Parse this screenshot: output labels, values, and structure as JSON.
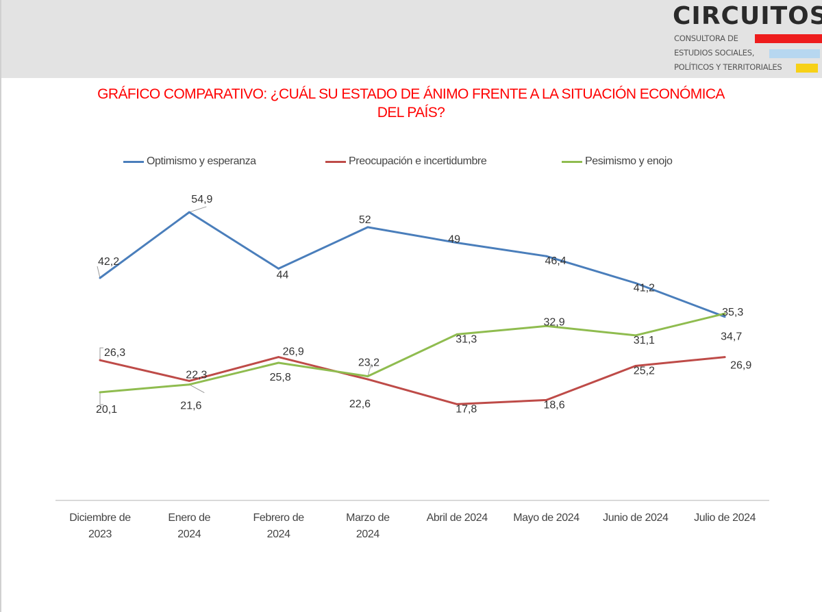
{
  "logo": {
    "name": "CIRCUITOS",
    "lines": [
      "CONSULTORA DE",
      "ESTUDIOS SOCIALES,",
      "POLÍTICOS Y TERRITORIALES"
    ],
    "swatch_colors": [
      "#ee1c1c",
      "#b7d7f0",
      "#f7d117"
    ]
  },
  "title_line1": "GRÁFICO COMPARATIVO: ¿CUÁL SU ESTADO DE ÁNIMO FRENTE A LA SITUACIÓN ECONÓMICA",
  "title_line2": "DEL PAÍS?",
  "chart_data": {
    "type": "line",
    "title": "GRÁFICO COMPARATIVO: ¿CUÁL SU ESTADO DE ÁNIMO FRENTE A LA SITUACIÓN ECONÓMICA DEL PAÍS?",
    "xlabel": "",
    "ylabel": "",
    "ylim": [
      0,
      60
    ],
    "grid": false,
    "legend_position": "top",
    "categories": [
      [
        "Diciembre de",
        "2023"
      ],
      [
        "Enero de",
        "2024"
      ],
      [
        "Febrero de",
        "2024"
      ],
      [
        "Marzo de",
        "2024"
      ],
      [
        "Abril de 2024"
      ],
      [
        "Mayo de 2024"
      ],
      [
        "Junio de 2024"
      ],
      [
        "Julio de 2024"
      ]
    ],
    "series": [
      {
        "name": "Optimismo y esperanza",
        "color": "#4a7ebb",
        "values": [
          42.2,
          54.9,
          44,
          52,
          49,
          46.4,
          41.2,
          34.7
        ],
        "labels": [
          "42,2",
          "54,9",
          "44",
          "52",
          "49",
          "46,4",
          "41,2",
          "34,7"
        ]
      },
      {
        "name": "Preocupación e incertidumbre",
        "color": "#be4b48",
        "values": [
          26.3,
          22.3,
          26.9,
          22.6,
          17.8,
          18.6,
          25.2,
          26.9
        ],
        "labels": [
          "26,3",
          "22,3",
          "26,9",
          "22,6",
          "17,8",
          "18,6",
          "25,2",
          "26,9"
        ]
      },
      {
        "name": "Pesimismo y enojo",
        "color": "#8fbc4f",
        "values": [
          20.1,
          21.6,
          25.8,
          23.2,
          31.3,
          32.9,
          31.1,
          35.3
        ],
        "labels": [
          "20,1",
          "21,6",
          "25,8",
          "23,2",
          "31,3",
          "32,9",
          "31,1",
          "35,3"
        ]
      }
    ]
  }
}
